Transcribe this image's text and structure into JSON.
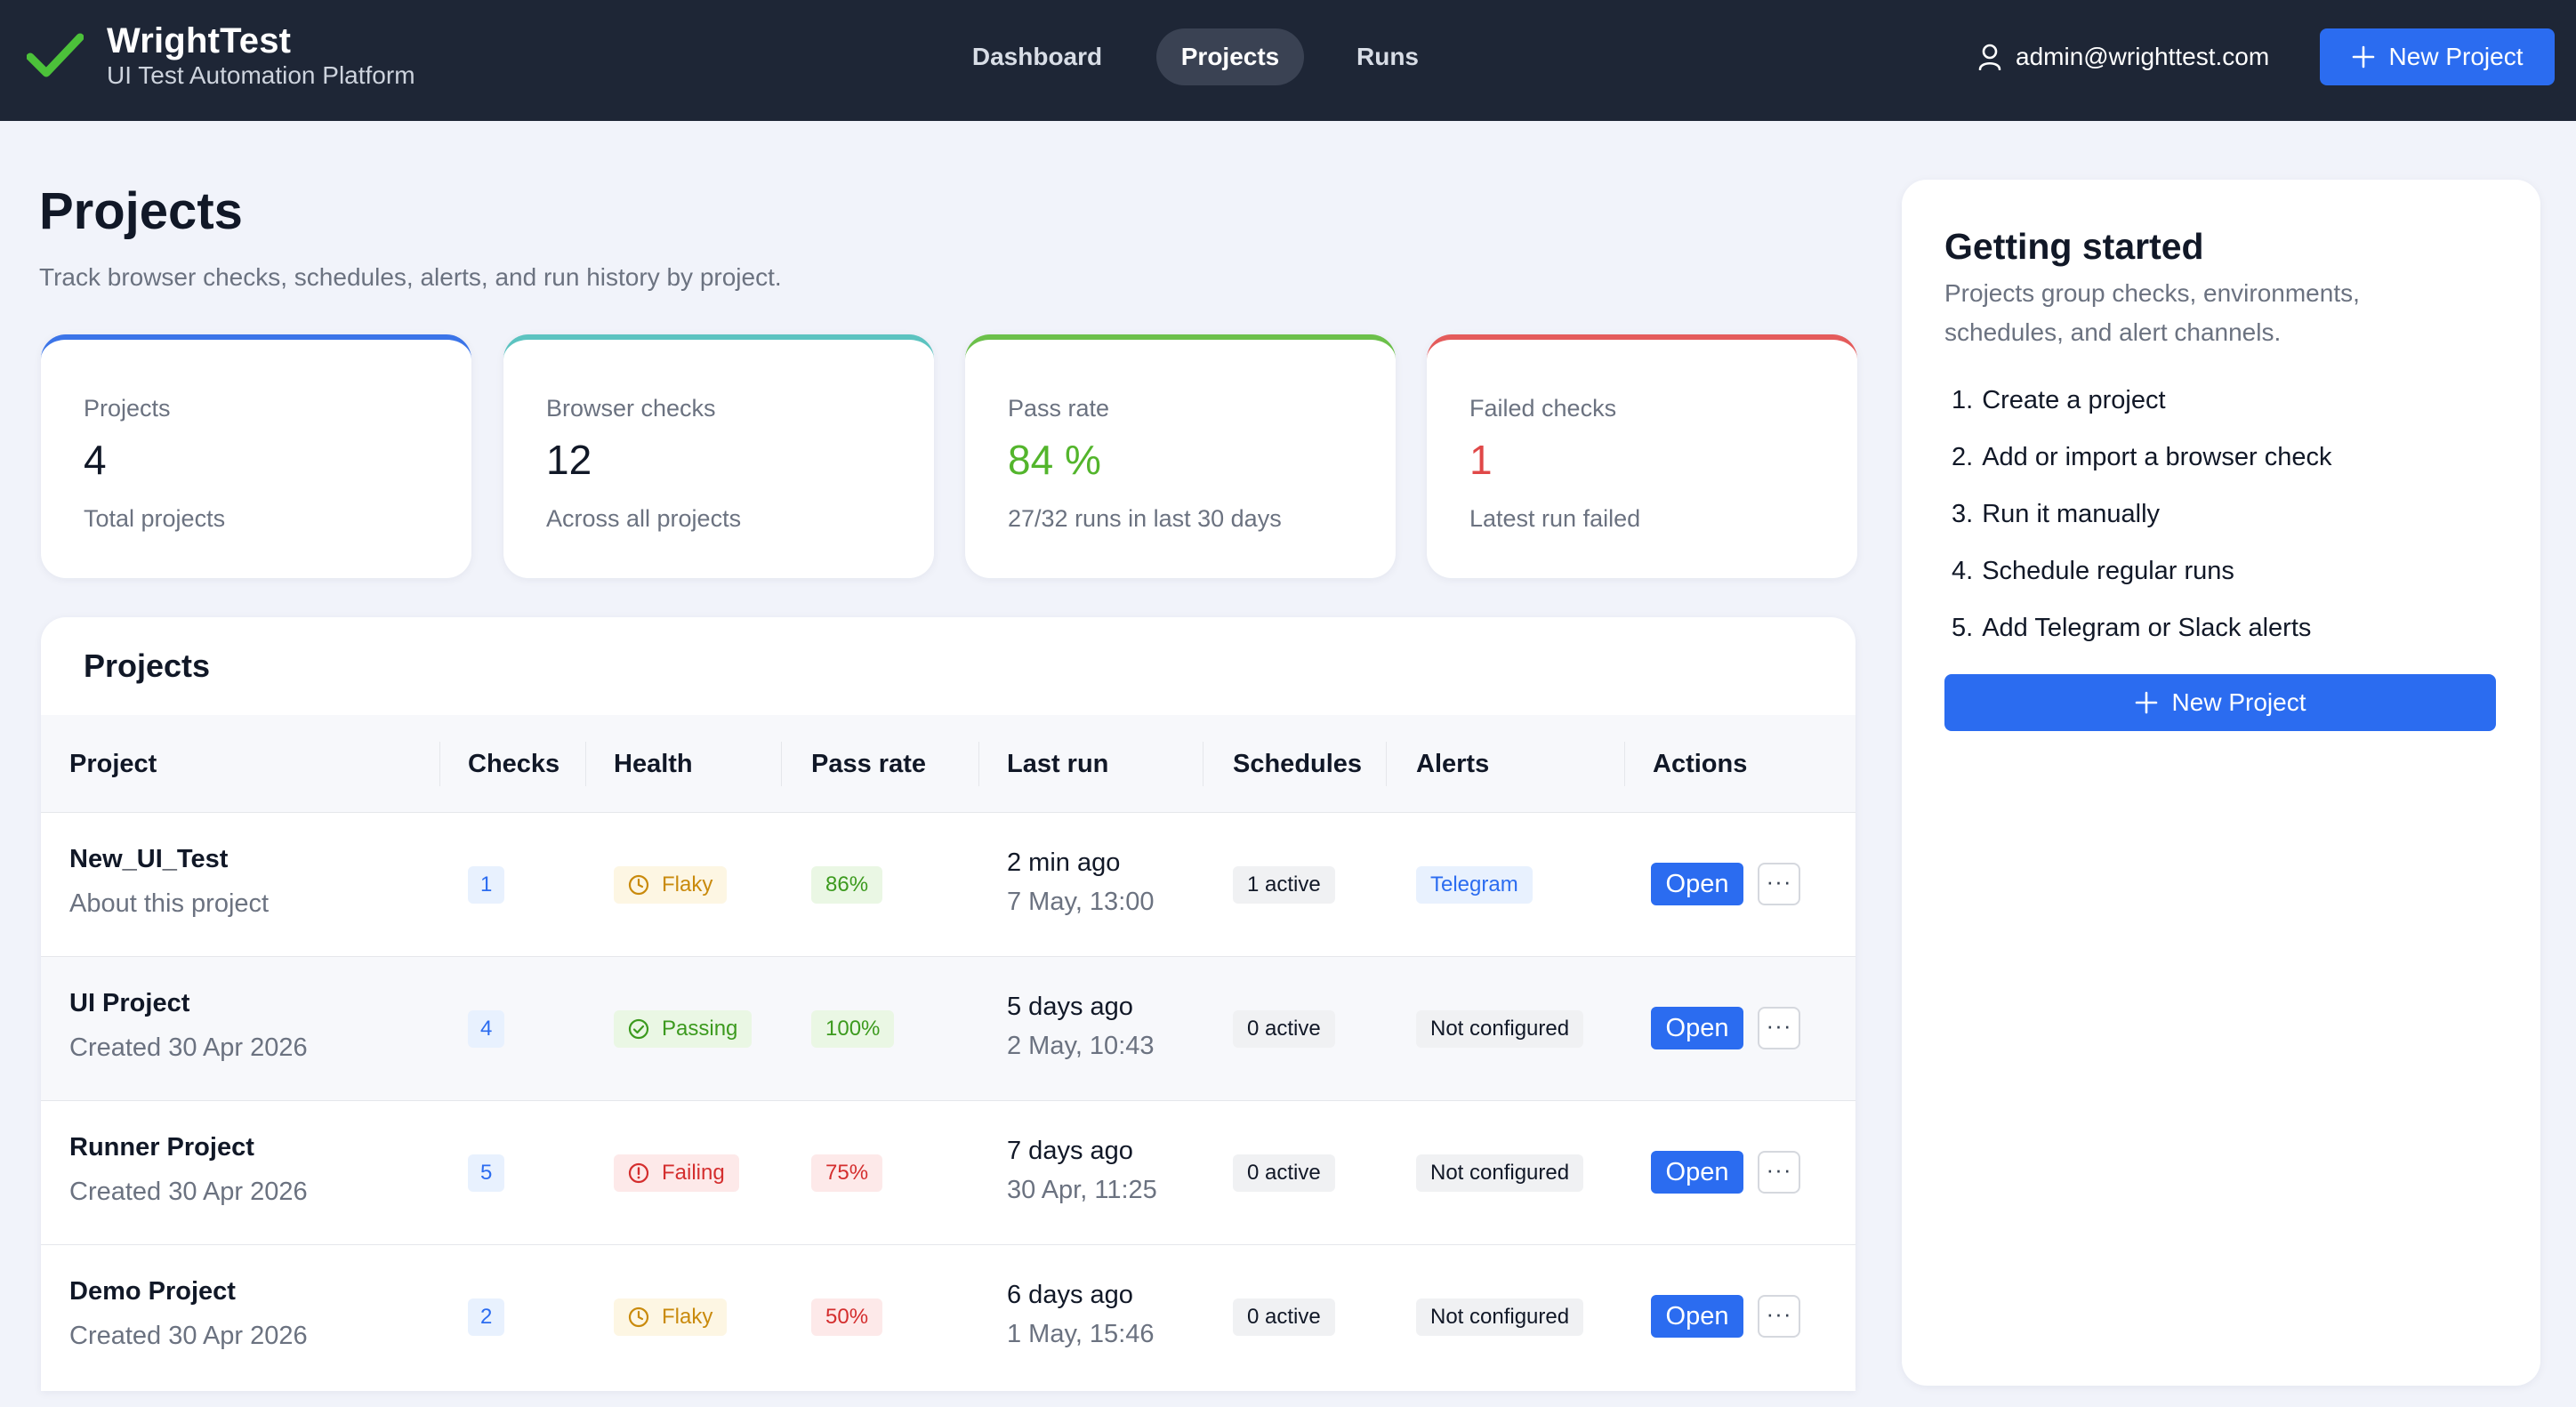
{
  "brand": {
    "name": "WrightTest",
    "tagline": "UI Test Automation Platform"
  },
  "nav": [
    {
      "label": "Dashboard",
      "active": false
    },
    {
      "label": "Projects",
      "active": true
    },
    {
      "label": "Runs",
      "active": false
    }
  ],
  "user": {
    "email": "admin@wrighttest.com",
    "icon": "user-icon"
  },
  "header_button": {
    "label": "New Project",
    "icon": "plus-icon"
  },
  "page": {
    "title": "Projects",
    "subtitle": "Track browser checks, schedules, alerts, and run history by project."
  },
  "stats": [
    {
      "label": "Projects",
      "value": "4",
      "sub": "Total projects",
      "accent": "#3b74e8",
      "value_color": "#111827"
    },
    {
      "label": "Browser checks",
      "value": "12",
      "sub": "Across all projects",
      "accent": "#5cc3c0",
      "value_color": "#111827"
    },
    {
      "label": "Pass rate",
      "value": "84 %",
      "sub": "27/32 runs in last 30 days",
      "accent": "#6cc04a",
      "value_color": "#53b52c"
    },
    {
      "label": "Failed checks",
      "value": "1",
      "sub": "Latest run failed",
      "accent": "#e45b5b",
      "value_color": "#e04848"
    }
  ],
  "table": {
    "title": "Projects",
    "columns": [
      "Project",
      "Checks",
      "Health",
      "Pass rate",
      "Last run",
      "Schedules",
      "Alerts",
      "Actions"
    ],
    "rows": [
      {
        "name": "New_UI_Test",
        "desc": "About this project",
        "checks": "1",
        "health": "Flaky",
        "health_type": "flaky",
        "pass_rate": "86%",
        "rate_type": "green",
        "last_run": "2 min ago",
        "last_run_date": "7 May, 13:00",
        "schedules": "1 active",
        "alerts": "Telegram",
        "alerts_type": "telegram",
        "open": "Open",
        "more": "···"
      },
      {
        "name": "UI Project",
        "desc": "Created 30 Apr 2026",
        "checks": "4",
        "health": "Passing",
        "health_type": "pass",
        "pass_rate": "100%",
        "rate_type": "green",
        "last_run": "5 days ago",
        "last_run_date": "2 May, 10:43",
        "schedules": "0 active",
        "alerts": "Not configured",
        "alerts_type": "grey",
        "open": "Open",
        "more": "···"
      },
      {
        "name": "Runner Project",
        "desc": "Created 30 Apr 2026",
        "checks": "5",
        "health": "Failing",
        "health_type": "fail",
        "pass_rate": "75%",
        "rate_type": "red",
        "last_run": "7 days ago",
        "last_run_date": "30 Apr, 11:25",
        "schedules": "0 active",
        "alerts": "Not configured",
        "alerts_type": "grey",
        "open": "Open",
        "more": "···"
      },
      {
        "name": "Demo Project",
        "desc": "Created 30 Apr 2026",
        "checks": "2",
        "health": "Flaky",
        "health_type": "flaky",
        "pass_rate": "50%",
        "rate_type": "red",
        "last_run": "6 days ago",
        "last_run_date": "1 May, 15:46",
        "schedules": "0 active",
        "alerts": "Not configured",
        "alerts_type": "grey",
        "open": "Open",
        "more": "···"
      }
    ]
  },
  "getting_started": {
    "title": "Getting started",
    "description": "Projects group checks, environments, schedules, and alert channels.",
    "steps": [
      {
        "num": "1.",
        "text": "Create a project"
      },
      {
        "num": "2.",
        "text": "Add or import a browser check"
      },
      {
        "num": "3.",
        "text": "Run it manually"
      },
      {
        "num": "4.",
        "text": "Schedule regular runs"
      },
      {
        "num": "5.",
        "text": "Add Telegram or Slack alerts"
      }
    ],
    "button": "New Project"
  }
}
